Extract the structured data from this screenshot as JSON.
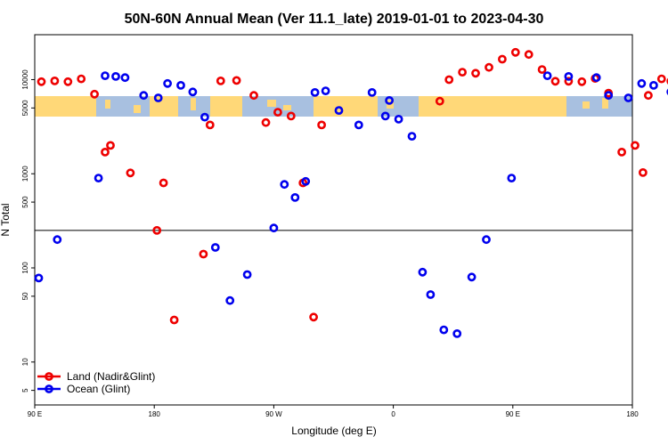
{
  "chart_data": {
    "type": "scatter",
    "title": "50N-60N Annual Mean (Ver 11.1_late)   2019-01-01 to 2023-04-30",
    "xlabel": "Longitude (deg E)",
    "ylabel": "N Total",
    "x_tick_labels": [
      "90 E",
      "180",
      "90 W",
      "0",
      "90 E",
      "180"
    ],
    "x_ticks_deg": [
      90,
      180,
      270,
      360,
      450,
      540
    ],
    "y_scale": "log",
    "ylim": [
      3.5,
      30000
    ],
    "y_tick_labels": [
      "5",
      "10",
      "50",
      "100",
      "500",
      "1000",
      "5000",
      "10000"
    ],
    "y_ticks": [
      5,
      10,
      50,
      100,
      500,
      1000,
      5000,
      10000
    ],
    "reference_line_y": 250,
    "grid": false,
    "legend_position": "bottom-left",
    "map_strip": {
      "ocean_color": "#a8c0e0",
      "land_color": "#ffd878"
    },
    "series": [
      {
        "name": "Land (Nadir&Glint)",
        "color": "#ee0000",
        "x": [
          95,
          105,
          115,
          125,
          135,
          143,
          147,
          162,
          182,
          187,
          195,
          217,
          222,
          230,
          242,
          255,
          264,
          273,
          283,
          292,
          300,
          306,
          395,
          402,
          412,
          422,
          432,
          442,
          452,
          462,
          472,
          482,
          492,
          502,
          512,
          522,
          532,
          542,
          548,
          552,
          562,
          569
        ],
        "y": [
          9500,
          9700,
          9500,
          10200,
          7000,
          1700,
          2000,
          1020,
          250,
          800,
          28,
          140,
          3300,
          9700,
          9800,
          6800,
          3500,
          4500,
          4100,
          800,
          30,
          3300,
          5900,
          10000,
          12000,
          11700,
          13500,
          16500,
          19500,
          18500,
          12800,
          9600,
          9600,
          9500,
          10300,
          7200,
          1700,
          2000,
          1030,
          6800,
          10200,
          9600
        ]
      },
      {
        "name": "Ocean (Glint)",
        "color": "#0000ee",
        "x": [
          93,
          107,
          138,
          143,
          151,
          158,
          172,
          183,
          190,
          200,
          209,
          218,
          226,
          237,
          250,
          270,
          278,
          286,
          294,
          301,
          309,
          319,
          334,
          344,
          354,
          357,
          364,
          374,
          382,
          388,
          398,
          408,
          419,
          430,
          449,
          476,
          492,
          513,
          522,
          537,
          547,
          556,
          569
        ],
        "y": [
          78,
          200,
          900,
          11000,
          10800,
          10500,
          6800,
          6400,
          9100,
          8700,
          7400,
          4000,
          165,
          45,
          85,
          265,
          770,
          560,
          830,
          7300,
          7600,
          4700,
          3300,
          7300,
          4100,
          6000,
          3800,
          2500,
          90,
          52,
          22,
          20,
          80,
          200,
          900,
          11000,
          10800,
          10500,
          6800,
          6400,
          9100,
          8700,
          7400
        ]
      }
    ]
  }
}
